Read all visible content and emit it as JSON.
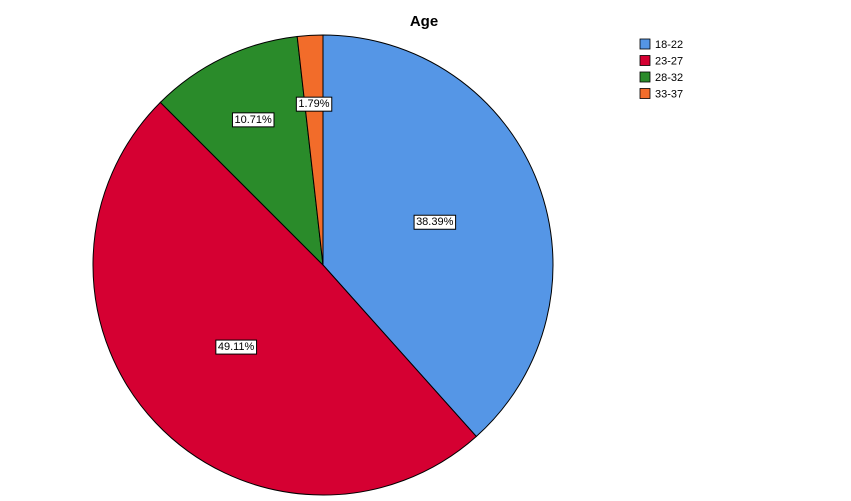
{
  "chart_data": {
    "type": "pie",
    "title": "Age",
    "categories": [
      "18-22",
      "23-27",
      "28-32",
      "33-37"
    ],
    "values": [
      38.39,
      49.11,
      10.71,
      1.79
    ],
    "value_labels": [
      "38.39%",
      "49.11%",
      "10.71%",
      "1.79%"
    ],
    "colors": [
      "#5596e6",
      "#d50032",
      "#2a8b2a",
      "#f26c2a"
    ],
    "legend": "top-right"
  }
}
